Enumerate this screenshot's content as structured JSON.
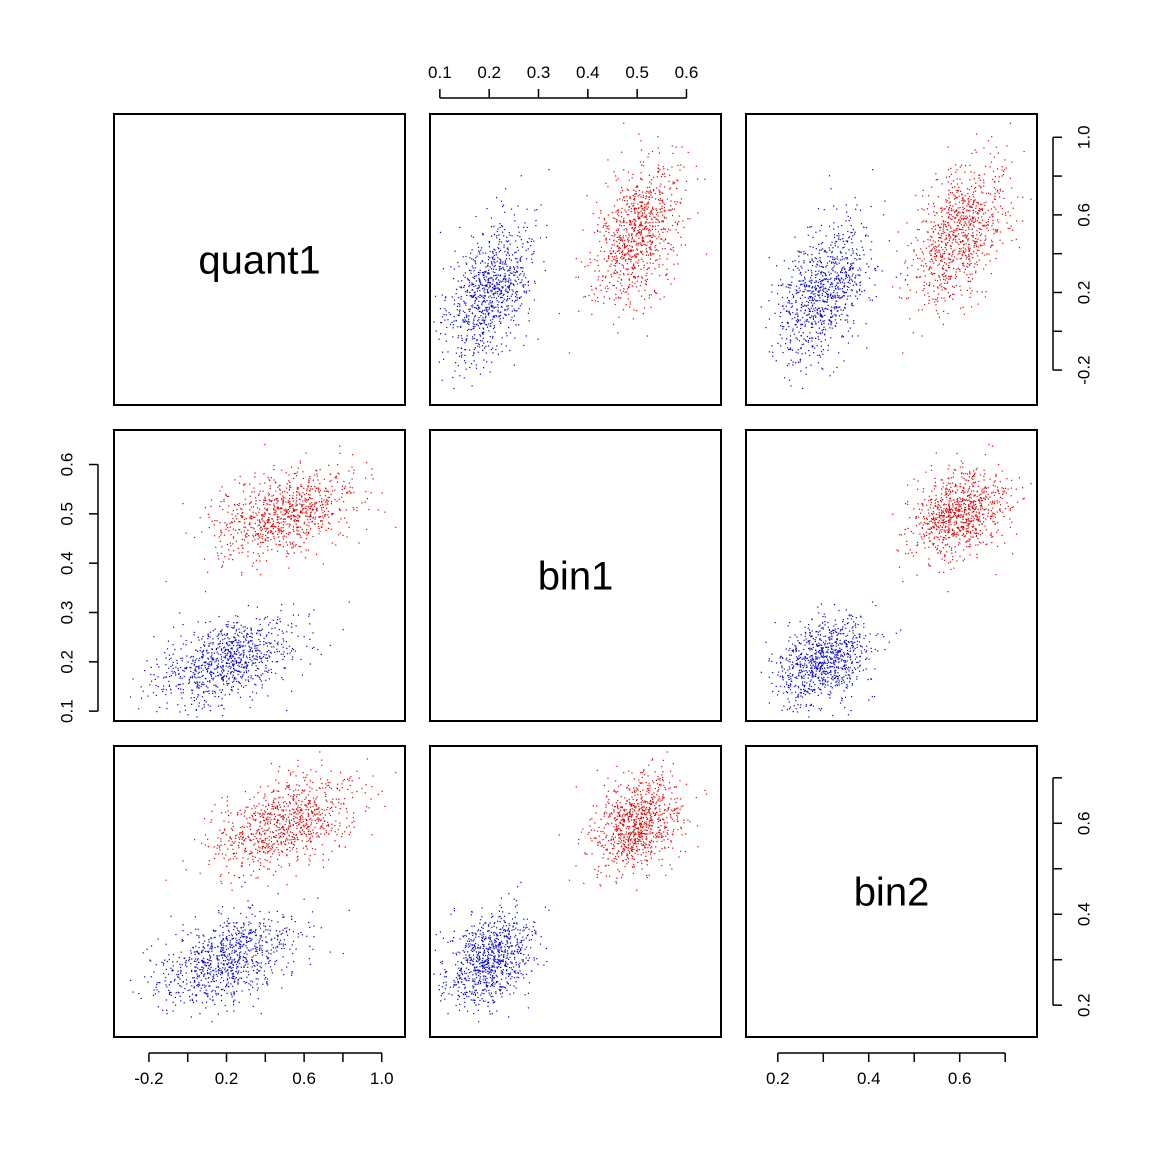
{
  "chart_data": {
    "type": "scatter",
    "variables": [
      "quant1",
      "bin1",
      "bin2"
    ],
    "axes": {
      "quant1": {
        "range": [
          -0.38,
          1.12
        ],
        "ticks": [
          -0.2,
          0,
          0.2,
          0.4,
          0.6,
          0.8,
          1.0
        ],
        "tick_labels": [
          "-0.2",
          "",
          "0.2",
          "",
          "0.6",
          "",
          "1.0"
        ]
      },
      "bin1": {
        "range": [
          0.08,
          0.67
        ],
        "ticks": [
          0.1,
          0.2,
          0.3,
          0.4,
          0.5,
          0.6
        ],
        "tick_labels": [
          "0.1",
          "0.2",
          "0.3",
          "0.4",
          "0.5",
          "0.6"
        ]
      },
      "bin2": {
        "range": [
          0.13,
          0.77
        ],
        "ticks": [
          0.2,
          0.3,
          0.4,
          0.5,
          0.6,
          0.7
        ],
        "tick_labels": [
          "0.2",
          "",
          "0.4",
          "",
          "0.6",
          ""
        ]
      }
    },
    "axis_placement": {
      "bottom": [
        "quant1",
        "bin2"
      ],
      "top": [
        "bin1"
      ],
      "left": [
        "bin1"
      ],
      "right": [
        "quant1",
        "bin2"
      ]
    },
    "groups": [
      {
        "color": "#0000cc",
        "n_points": 900,
        "mean": {
          "quant1": 0.2,
          "bin1": 0.2,
          "bin2": 0.3
        },
        "sd": {
          "quant1": 0.18,
          "bin1": 0.045,
          "bin2": 0.05
        },
        "correlation": {
          "quant1_bin1": 0.45,
          "quant1_bin2": 0.45,
          "bin1_bin2": 0.3
        }
      },
      {
        "color": "#dd0000",
        "n_points": 900,
        "mean": {
          "quant1": 0.5,
          "bin1": 0.5,
          "bin2": 0.6
        },
        "sd": {
          "quant1": 0.18,
          "bin1": 0.045,
          "bin2": 0.05
        },
        "correlation": {
          "quant1_bin1": 0.45,
          "quant1_bin2": 0.45,
          "bin1_bin2": 0.3
        }
      }
    ],
    "grid": false,
    "legend": "none"
  }
}
